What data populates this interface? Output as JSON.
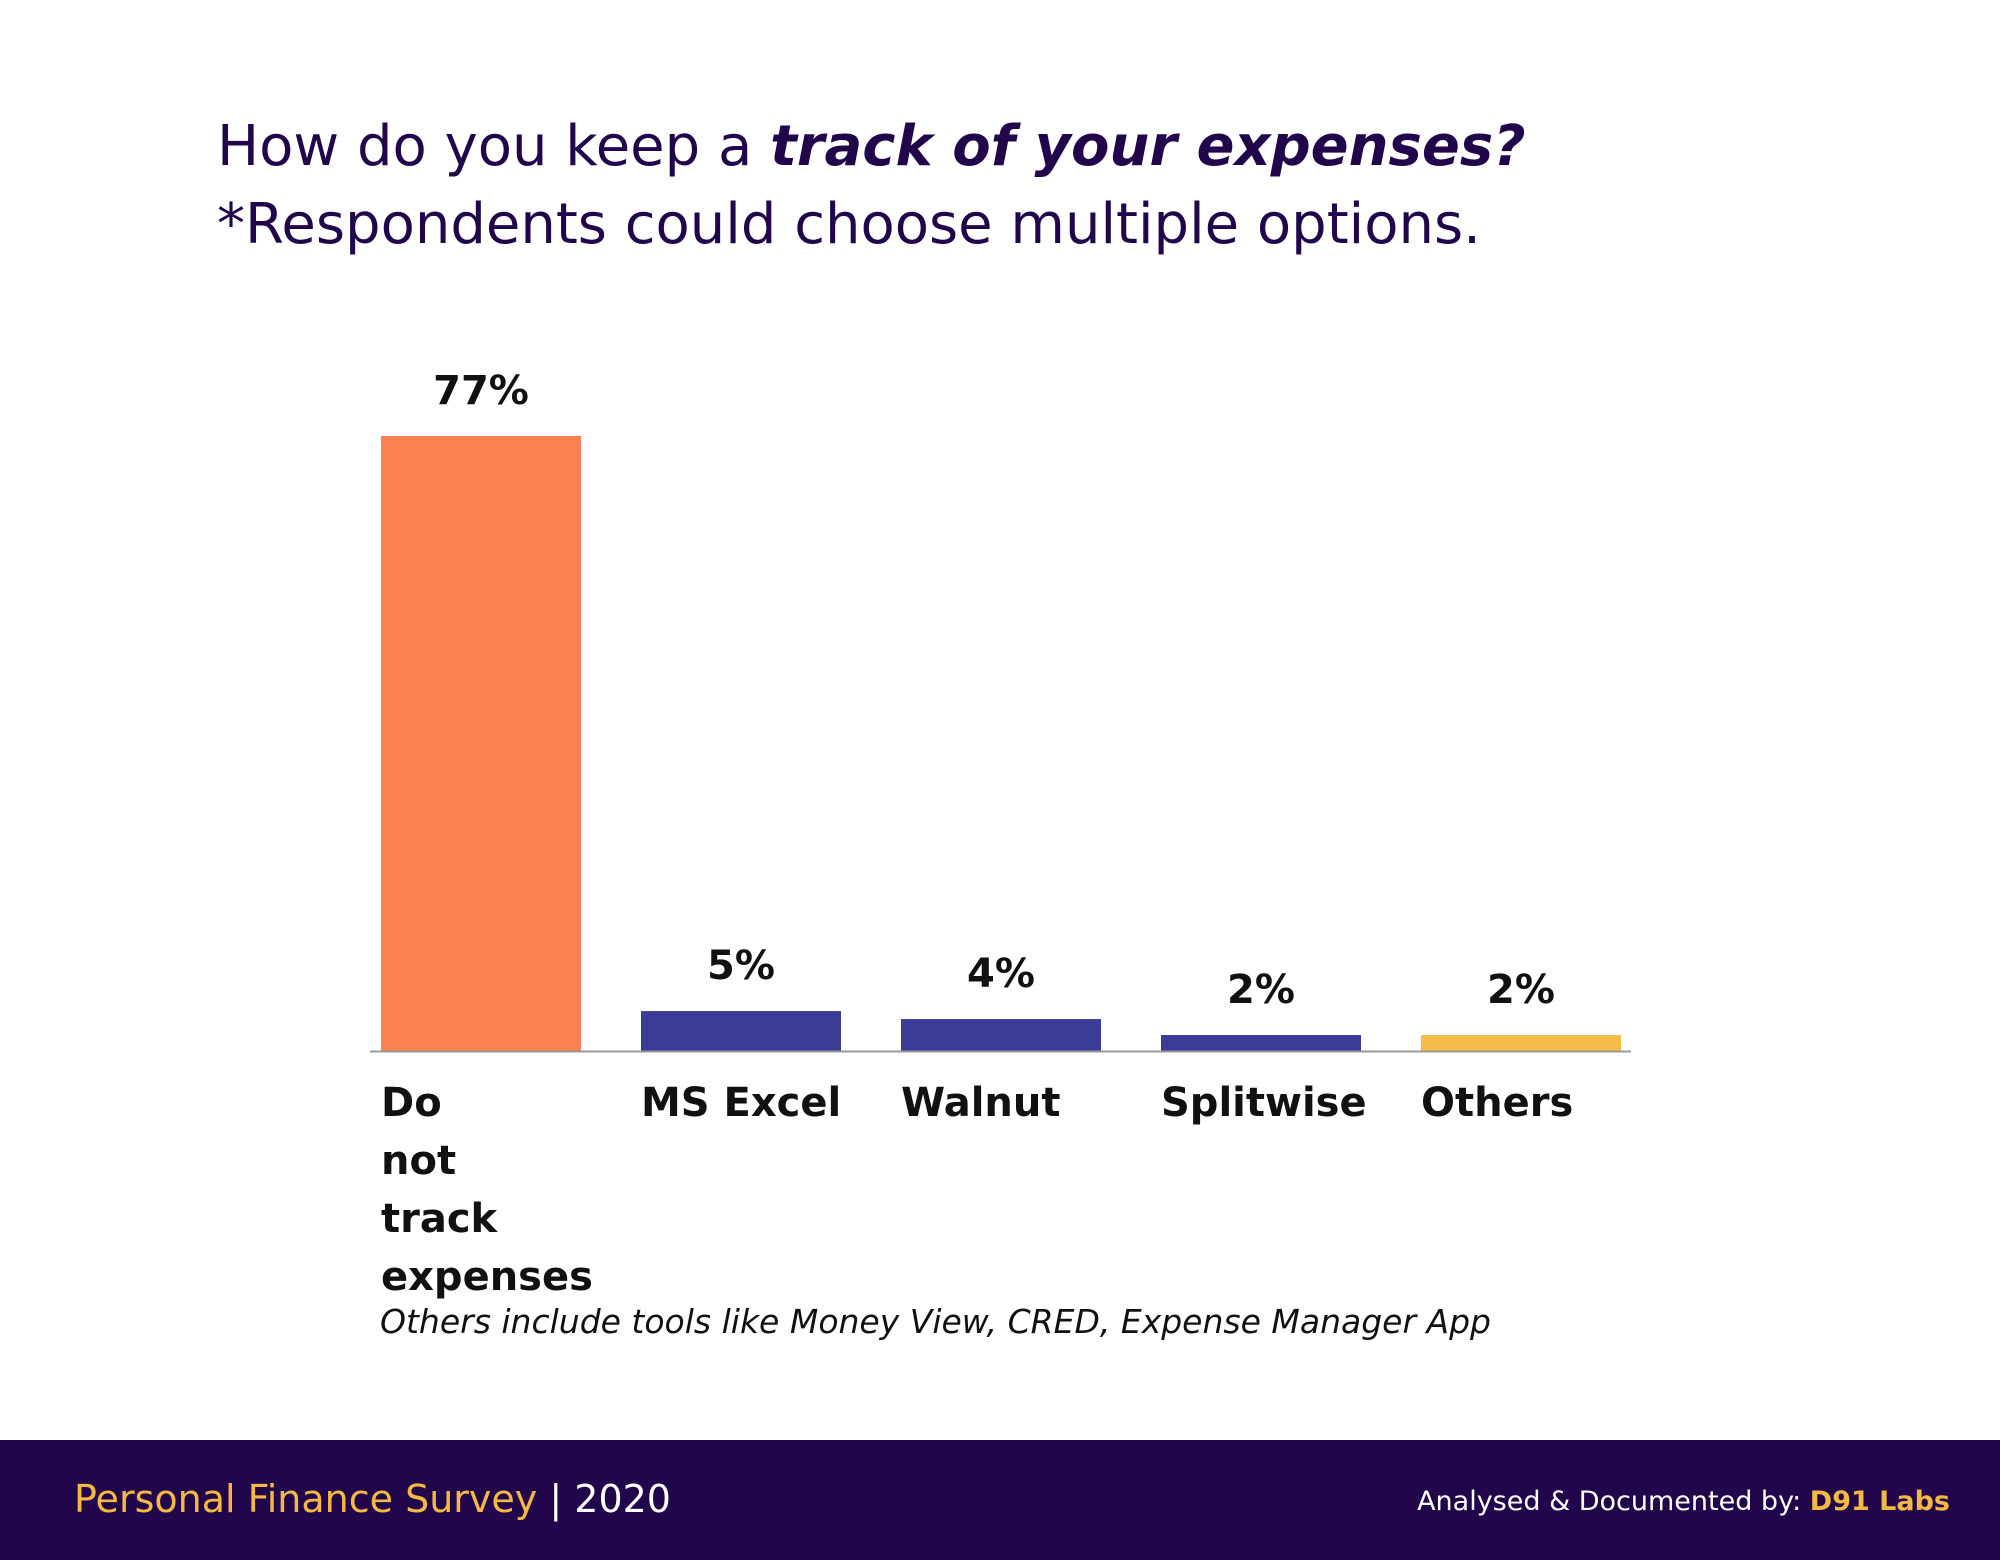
{
  "header": {
    "title_prefix": "How do you keep a ",
    "title_emphasis": "track of your expenses?",
    "subtitle": "*Respondents could choose multiple options."
  },
  "chart_data": {
    "type": "bar",
    "categories": [
      "Do not track expenses",
      "MS Excel",
      "Walnut",
      "Splitwise",
      "Others"
    ],
    "values": [
      77,
      5,
      4,
      2,
      2
    ],
    "value_labels": [
      "77%",
      "5%",
      "4%",
      "2%",
      "2%"
    ],
    "unit": "%",
    "colors": [
      "#f98152",
      "#3b3b98",
      "#3b3b98",
      "#3b3b98",
      "#f4bd47"
    ],
    "ylim": [
      0,
      77
    ],
    "grid": false,
    "legend": "none",
    "axis_color": "#999999"
  },
  "footnote": "Others include tools like Money View, CRED, Expense Manager App",
  "footer": {
    "survey": "Personal Finance Survey",
    "separator": "|",
    "year": "2020",
    "credit_prefix": "Analysed & Documented by:",
    "credit_org": "D91 Labs"
  }
}
